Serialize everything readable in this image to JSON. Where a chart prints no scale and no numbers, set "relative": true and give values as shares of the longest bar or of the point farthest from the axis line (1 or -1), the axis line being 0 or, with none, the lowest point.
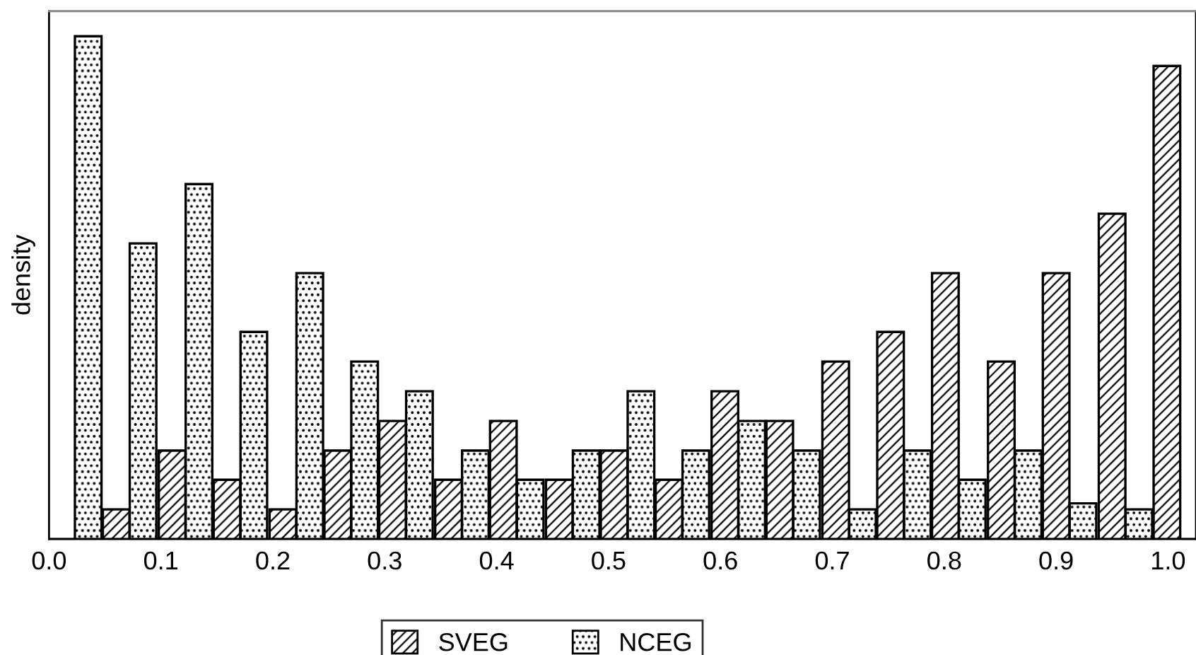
{
  "chart_data": {
    "type": "bar",
    "relative": true,
    "ylabel": "density",
    "xlim": [
      0,
      1.025
    ],
    "xticks": [
      {
        "value": 0,
        "label": "0.0"
      },
      {
        "value": 0.1,
        "label": "0.1"
      },
      {
        "value": 0.2,
        "label": "0.2"
      },
      {
        "value": 0.3,
        "label": "0.3"
      },
      {
        "value": 0.4,
        "label": "0.4"
      },
      {
        "value": 0.5,
        "label": "0.5"
      },
      {
        "value": 0.6,
        "label": "0.6"
      },
      {
        "value": 0.7,
        "label": "0.7"
      },
      {
        "value": 0.8,
        "label": "0.8"
      },
      {
        "value": 0.9,
        "label": "0.9"
      },
      {
        "value": 1.0,
        "label": "1.0"
      }
    ],
    "series": [
      {
        "name": "SVEG",
        "color": "#000000",
        "x": [
          0.011,
          0.06,
          0.11,
          0.159,
          0.209,
          0.258,
          0.307,
          0.357,
          0.406,
          0.456,
          0.505,
          0.554,
          0.604,
          0.653,
          0.703,
          0.752,
          0.801,
          0.851,
          0.9,
          0.95,
          0.999
        ],
        "values": [
          0,
          0.059,
          0.176,
          0.118,
          0.059,
          0.176,
          0.235,
          0.118,
          0.235,
          0.118,
          0.176,
          0.118,
          0.294,
          0.235,
          0.353,
          0.412,
          0.529,
          0.353,
          0.529,
          0.647,
          0.941
        ]
      },
      {
        "name": "NCEG",
        "color": "#000000",
        "x": [
          0.035,
          0.084,
          0.134,
          0.183,
          0.233,
          0.282,
          0.331,
          0.381,
          0.43,
          0.48,
          0.529,
          0.578,
          0.628,
          0.677,
          0.727,
          0.776,
          0.825,
          0.875,
          0.924,
          0.974,
          1.023
        ],
        "values": [
          1,
          0.588,
          0.706,
          0.412,
          0.529,
          0.353,
          0.294,
          0.176,
          0.118,
          0.176,
          0.294,
          0.176,
          0.235,
          0.176,
          0.059,
          0.176,
          0.118,
          0.176,
          0.071,
          0.059,
          0
        ]
      }
    ],
    "legend": "bottom"
  }
}
